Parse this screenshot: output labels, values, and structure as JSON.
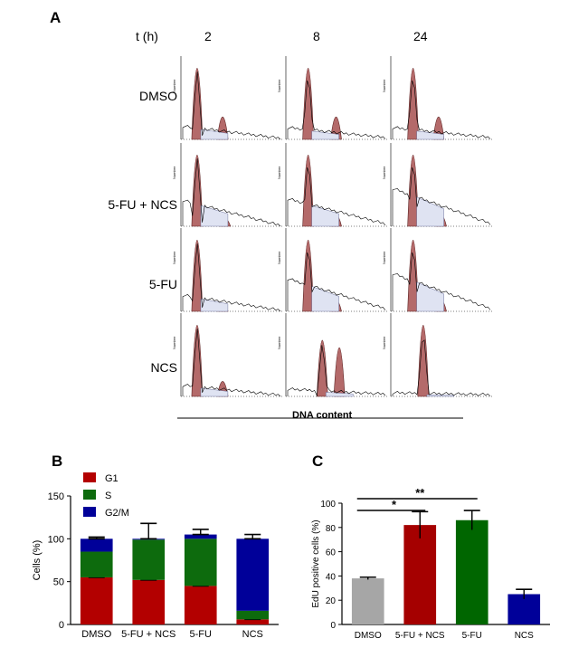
{
  "panels": {
    "a": "A",
    "b": "B",
    "c": "C"
  },
  "panel_a": {
    "time_label": "t (h)",
    "times": [
      "2",
      "8",
      "24"
    ],
    "rows": [
      "DMSO",
      "5-FU + NCS",
      "5-FU",
      "NCS"
    ],
    "xaxis_title": "DNA content",
    "small_ylabel": "Number"
  },
  "chart_data": [
    {
      "type": "bar",
      "stacked": true,
      "ylabel": "Cells (%)",
      "categories": [
        "DMSO",
        "5-FU + NCS",
        "5-FU",
        "NCS"
      ],
      "ylim": [
        0,
        150
      ],
      "yticks": [
        0,
        50,
        100,
        150
      ],
      "legend": "top-left",
      "series": [
        {
          "name": "G1",
          "color": "#b30000",
          "values": [
            55,
            52,
            45,
            6
          ],
          "errors": [
            10,
            16,
            9,
            5
          ]
        },
        {
          "name": "S",
          "color": "#0d6b0d",
          "values": [
            30,
            47,
            55,
            10
          ],
          "errors": [
            0,
            0,
            0,
            0
          ]
        },
        {
          "name": "G2/M",
          "color": "#000099",
          "values": [
            15,
            1,
            5,
            84
          ],
          "errors": [
            2,
            18,
            6,
            5
          ]
        }
      ]
    },
    {
      "type": "bar",
      "ylabel": "EdU positive cells (%)",
      "categories": [
        "DMSO",
        "5-FU + NCS",
        "5-FU",
        "NCS"
      ],
      "ylim": [
        0,
        100
      ],
      "yticks": [
        0,
        20,
        40,
        60,
        80,
        100
      ],
      "values": [
        38,
        82,
        86,
        25
      ],
      "errors": [
        1,
        11,
        8,
        4
      ],
      "colors": [
        "#a6a6a6",
        "#a50000",
        "#006600",
        "#000099"
      ],
      "significance": [
        {
          "from": 0,
          "to": 1,
          "label": "*"
        },
        {
          "from": 0,
          "to": 2,
          "label": "**"
        }
      ]
    }
  ]
}
